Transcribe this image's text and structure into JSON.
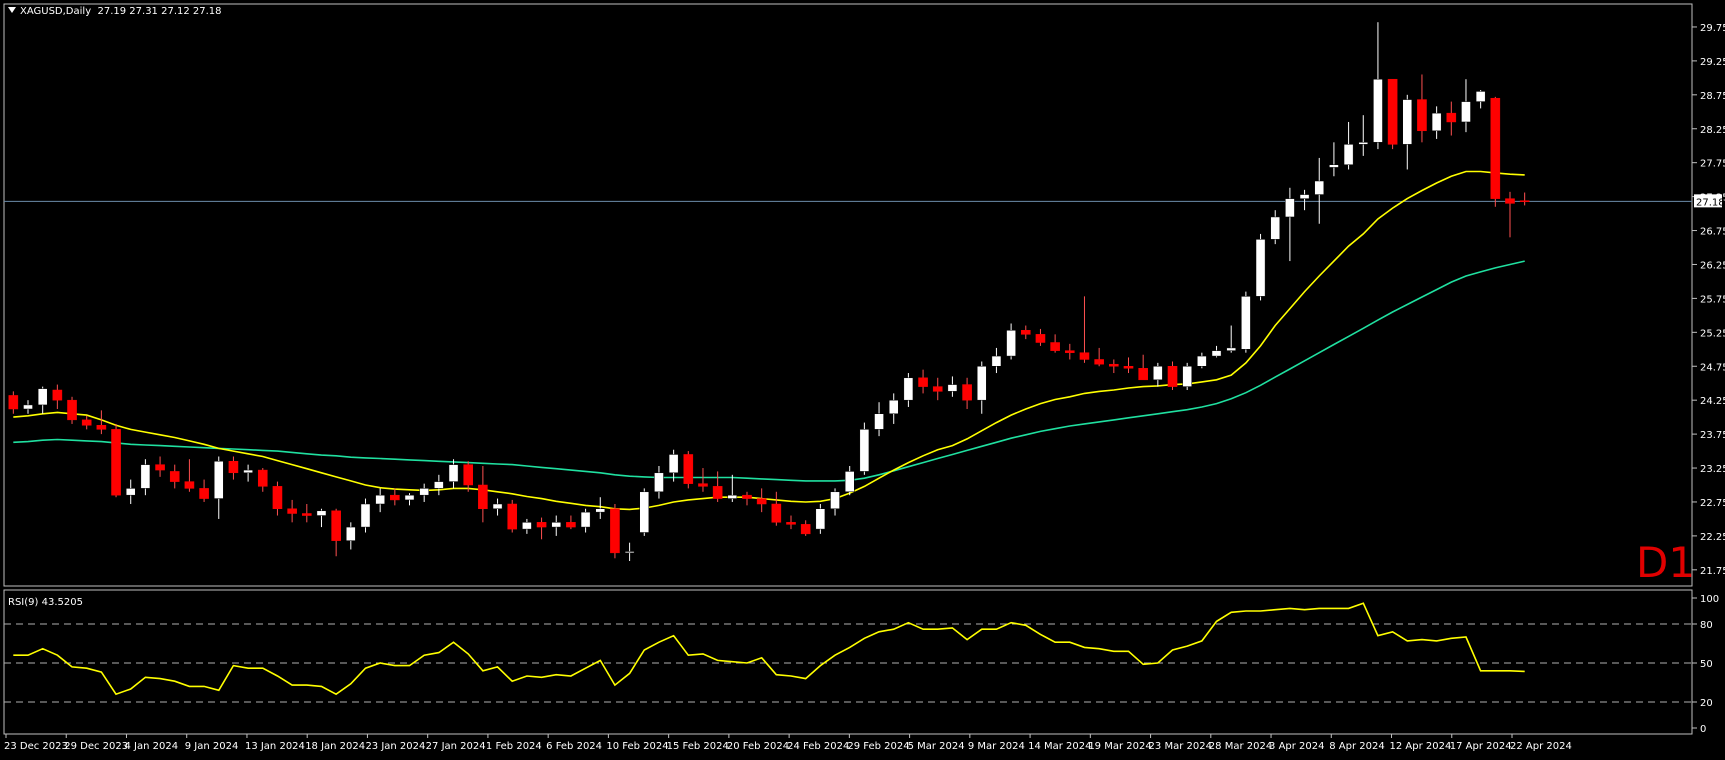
{
  "header": {
    "symbol": "XAGUSD,Daily",
    "ohlc": "27.19 27.31 27.12 27.18"
  },
  "timeframe_label": "D1",
  "last_price_label": "27.18",
  "colors": {
    "bull_candle": "#ffffff",
    "bear_candle": "#ff0000",
    "wick": "#ffffff",
    "ma_fast": "#ffff00",
    "ma_slow": "#20e0a0",
    "rsi_line": "#ffff00",
    "price_line": "#6c8caa",
    "frame": "#c0c0c0",
    "background": "#000000"
  },
  "chart_data": [
    {
      "type": "candlestick",
      "title": "XAGUSD,Daily",
      "ylim": [
        21.6,
        30.0
      ],
      "y_ticks": [
        "29.75",
        "29.25",
        "28.75",
        "28.25",
        "27.75",
        "27.25",
        "26.75",
        "26.25",
        "25.75",
        "25.25",
        "24.75",
        "24.25",
        "23.75",
        "23.25",
        "22.75",
        "22.25",
        "21.75"
      ],
      "last_price": 27.18,
      "series": [
        {
          "name": "",
          "role": "ohlc",
          "values": [
            [
              24.32,
              24.38,
              24.05,
              24.12
            ],
            [
              24.12,
              24.25,
              24.05,
              24.18
            ],
            [
              24.18,
              24.45,
              24.05,
              24.42
            ],
            [
              24.4,
              24.48,
              24.12,
              24.25
            ],
            [
              24.25,
              24.3,
              23.9,
              23.96
            ],
            [
              23.96,
              24.02,
              23.82,
              23.88
            ],
            [
              23.88,
              24.1,
              23.75,
              23.82
            ],
            [
              23.82,
              23.9,
              22.82,
              22.85
            ],
            [
              22.85,
              23.08,
              22.72,
              22.95
            ],
            [
              22.95,
              23.38,
              22.85,
              23.3
            ],
            [
              23.3,
              23.42,
              23.12,
              23.22
            ],
            [
              23.2,
              23.3,
              22.95,
              23.05
            ],
            [
              23.05,
              23.38,
              22.9,
              22.95
            ],
            [
              22.95,
              23.08,
              22.75,
              22.8
            ],
            [
              22.8,
              23.42,
              22.5,
              23.35
            ],
            [
              23.35,
              23.42,
              23.08,
              23.18
            ],
            [
              23.18,
              23.3,
              23.05,
              23.22
            ],
            [
              23.22,
              23.25,
              22.9,
              22.98
            ],
            [
              22.98,
              23.05,
              22.55,
              22.65
            ],
            [
              22.65,
              22.78,
              22.45,
              22.58
            ],
            [
              22.58,
              22.72,
              22.45,
              22.55
            ],
            [
              22.55,
              22.65,
              22.38,
              22.62
            ],
            [
              22.62,
              22.65,
              21.95,
              22.18
            ],
            [
              22.18,
              22.45,
              22.05,
              22.38
            ],
            [
              22.38,
              22.8,
              22.3,
              22.72
            ],
            [
              22.72,
              22.95,
              22.6,
              22.85
            ],
            [
              22.85,
              22.95,
              22.7,
              22.78
            ],
            [
              22.78,
              22.88,
              22.7,
              22.85
            ],
            [
              22.85,
              23.02,
              22.75,
              22.95
            ],
            [
              22.95,
              23.15,
              22.85,
              23.05
            ],
            [
              23.05,
              23.38,
              22.95,
              23.3
            ],
            [
              23.3,
              23.35,
              22.9,
              23.0
            ],
            [
              23.0,
              23.28,
              22.45,
              22.65
            ],
            [
              22.65,
              22.8,
              22.55,
              22.72
            ],
            [
              22.72,
              22.78,
              22.3,
              22.35
            ],
            [
              22.35,
              22.5,
              22.28,
              22.45
            ],
            [
              22.45,
              22.52,
              22.2,
              22.38
            ],
            [
              22.38,
              22.55,
              22.25,
              22.45
            ],
            [
              22.45,
              22.55,
              22.35,
              22.38
            ],
            [
              22.38,
              22.65,
              22.3,
              22.6
            ],
            [
              22.6,
              22.82,
              22.5,
              22.65
            ],
            [
              22.65,
              22.72,
              21.92,
              22.0
            ],
            [
              22.0,
              22.15,
              21.88,
              22.02
            ],
            [
              22.3,
              22.95,
              22.25,
              22.9
            ],
            [
              22.9,
              23.28,
              22.8,
              23.18
            ],
            [
              23.18,
              23.52,
              23.05,
              23.45
            ],
            [
              23.45,
              23.5,
              22.95,
              23.02
            ],
            [
              23.02,
              23.25,
              22.9,
              22.98
            ],
            [
              22.98,
              23.2,
              22.75,
              22.8
            ],
            [
              22.8,
              23.15,
              22.75,
              22.85
            ],
            [
              22.85,
              22.9,
              22.7,
              22.8
            ],
            [
              22.8,
              22.95,
              22.6,
              22.72
            ],
            [
              22.72,
              22.9,
              22.4,
              22.45
            ],
            [
              22.45,
              22.55,
              22.35,
              22.42
            ],
            [
              22.42,
              22.48,
              22.25,
              22.28
            ],
            [
              22.35,
              22.72,
              22.28,
              22.65
            ],
            [
              22.65,
              22.95,
              22.55,
              22.9
            ],
            [
              22.9,
              23.28,
              22.85,
              23.2
            ],
            [
              23.2,
              23.92,
              23.15,
              23.82
            ],
            [
              23.82,
              24.22,
              23.72,
              24.05
            ],
            [
              24.05,
              24.35,
              23.9,
              24.25
            ],
            [
              24.25,
              24.65,
              24.15,
              24.58
            ],
            [
              24.58,
              24.7,
              24.35,
              24.45
            ],
            [
              24.45,
              24.58,
              24.25,
              24.38
            ],
            [
              24.38,
              24.6,
              24.3,
              24.48
            ],
            [
              24.48,
              24.58,
              24.12,
              24.25
            ],
            [
              24.25,
              24.82,
              24.05,
              24.75
            ],
            [
              24.75,
              25.02,
              24.65,
              24.9
            ],
            [
              24.9,
              25.38,
              24.85,
              25.28
            ],
            [
              25.28,
              25.35,
              25.15,
              25.22
            ],
            [
              25.22,
              25.3,
              25.05,
              25.1
            ],
            [
              25.1,
              25.22,
              24.95,
              24.98
            ],
            [
              24.98,
              25.08,
              24.85,
              24.95
            ],
            [
              24.95,
              25.78,
              24.8,
              24.85
            ],
            [
              24.85,
              25.02,
              24.75,
              24.78
            ],
            [
              24.78,
              24.85,
              24.65,
              24.75
            ],
            [
              24.75,
              24.88,
              24.65,
              24.72
            ],
            [
              24.72,
              24.92,
              24.58,
              24.55
            ],
            [
              24.55,
              24.8,
              24.45,
              24.75
            ],
            [
              24.75,
              24.82,
              24.4,
              24.45
            ],
            [
              24.45,
              24.8,
              24.4,
              24.75
            ],
            [
              24.75,
              24.95,
              24.72,
              24.9
            ],
            [
              24.9,
              25.05,
              24.88,
              24.98
            ],
            [
              24.98,
              25.35,
              24.95,
              25.02
            ],
            [
              25.0,
              25.85,
              24.95,
              25.78
            ],
            [
              25.78,
              26.7,
              25.72,
              26.62
            ],
            [
              26.62,
              27.05,
              26.55,
              26.95
            ],
            [
              26.95,
              27.38,
              26.3,
              27.22
            ],
            [
              27.22,
              27.35,
              27.05,
              27.28
            ],
            [
              27.28,
              27.82,
              26.85,
              27.48
            ],
            [
              27.68,
              28.05,
              27.55,
              27.72
            ],
            [
              27.72,
              28.35,
              27.65,
              28.02
            ],
            [
              28.02,
              28.45,
              27.85,
              28.05
            ],
            [
              28.05,
              29.82,
              27.95,
              28.98
            ],
            [
              28.98,
              28.98,
              27.95,
              28.02
            ],
            [
              28.02,
              28.75,
              27.65,
              28.68
            ],
            [
              28.68,
              29.05,
              28.05,
              28.22
            ],
            [
              28.22,
              28.58,
              28.1,
              28.48
            ],
            [
              28.48,
              28.65,
              28.15,
              28.35
            ],
            [
              28.35,
              28.98,
              28.2,
              28.65
            ],
            [
              28.65,
              28.82,
              28.55,
              28.8
            ],
            [
              28.7,
              28.72,
              27.1,
              27.22
            ],
            [
              27.22,
              27.32,
              26.65,
              27.15
            ],
            [
              27.19,
              27.31,
              27.12,
              27.18
            ]
          ]
        },
        {
          "name": "",
          "role": "ma_fast",
          "values": [
            24.0,
            24.02,
            24.05,
            24.07,
            24.05,
            24.03,
            23.96,
            23.88,
            23.82,
            23.78,
            23.74,
            23.7,
            23.65,
            23.6,
            23.54,
            23.5,
            23.46,
            23.42,
            23.36,
            23.3,
            23.24,
            23.18,
            23.12,
            23.06,
            23.0,
            22.96,
            22.94,
            22.93,
            22.92,
            22.93,
            22.95,
            22.95,
            22.93,
            22.9,
            22.87,
            22.83,
            22.8,
            22.76,
            22.73,
            22.7,
            22.68,
            22.65,
            22.64,
            22.66,
            22.7,
            22.75,
            22.78,
            22.8,
            22.82,
            22.82,
            22.82,
            22.8,
            22.78,
            22.76,
            22.75,
            22.76,
            22.8,
            22.88,
            22.98,
            23.1,
            23.22,
            23.33,
            23.43,
            23.52,
            23.58,
            23.68,
            23.8,
            23.92,
            24.03,
            24.12,
            24.2,
            24.26,
            24.3,
            24.35,
            24.38,
            24.4,
            24.43,
            24.45,
            24.46,
            24.48,
            24.49,
            24.52,
            24.55,
            24.62,
            24.8,
            25.05,
            25.35,
            25.6,
            25.85,
            26.08,
            26.3,
            26.52,
            26.7,
            26.92,
            27.08,
            27.22,
            27.34,
            27.45,
            27.55,
            27.62,
            27.62,
            27.6,
            27.58,
            27.57
          ]
        },
        {
          "name": "",
          "role": "ma_slow",
          "values": [
            23.63,
            23.64,
            23.66,
            23.67,
            23.66,
            23.65,
            23.64,
            23.62,
            23.6,
            23.59,
            23.58,
            23.57,
            23.56,
            23.55,
            23.54,
            23.53,
            23.52,
            23.51,
            23.5,
            23.48,
            23.46,
            23.44,
            23.43,
            23.41,
            23.4,
            23.39,
            23.38,
            23.37,
            23.36,
            23.35,
            23.34,
            23.33,
            23.32,
            23.31,
            23.3,
            23.28,
            23.26,
            23.24,
            23.22,
            23.2,
            23.18,
            23.15,
            23.13,
            23.12,
            23.11,
            23.11,
            23.11,
            23.11,
            23.11,
            23.11,
            23.1,
            23.09,
            23.08,
            23.07,
            23.06,
            23.06,
            23.06,
            23.07,
            23.1,
            23.15,
            23.21,
            23.27,
            23.33,
            23.39,
            23.45,
            23.51,
            23.57,
            23.63,
            23.69,
            23.74,
            23.79,
            23.83,
            23.87,
            23.9,
            23.93,
            23.96,
            23.99,
            24.02,
            24.05,
            24.08,
            24.11,
            24.15,
            24.2,
            24.27,
            24.36,
            24.47,
            24.59,
            24.71,
            24.83,
            24.95,
            25.07,
            25.19,
            25.31,
            25.43,
            25.55,
            25.66,
            25.77,
            25.88,
            25.99,
            26.08,
            26.14,
            26.2,
            26.25,
            26.3
          ]
        }
      ]
    },
    {
      "type": "line",
      "title": "RSI(9) 43.5205",
      "ylim": [
        0,
        100
      ],
      "y_ticks": [
        "100",
        "80",
        "50",
        "20",
        "0"
      ],
      "levels": [
        80,
        50,
        20
      ],
      "series": [
        {
          "name": "RSI(9)",
          "values": [
            56,
            56,
            61,
            56,
            47,
            46,
            43,
            26,
            30,
            39,
            38,
            36,
            32,
            32,
            29,
            48,
            46,
            46,
            40,
            33,
            33,
            32,
            26,
            34,
            46,
            50,
            48,
            48,
            56,
            58,
            66,
            57,
            44,
            47,
            36,
            40,
            39,
            41,
            40,
            46,
            52,
            33,
            42,
            60,
            66,
            71,
            56,
            57,
            52,
            51,
            50,
            54,
            41,
            40,
            38,
            48,
            56,
            62,
            69,
            74,
            76,
            81,
            76,
            76,
            77,
            68,
            76,
            76,
            81,
            79,
            72,
            66,
            66,
            62,
            61,
            59,
            59,
            49,
            50,
            60,
            63,
            67,
            82,
            89,
            90,
            90,
            91,
            92,
            91,
            92,
            92,
            92,
            96,
            71,
            74,
            67,
            68,
            67,
            69,
            70,
            44,
            44,
            44,
            43.5205
          ]
        }
      ]
    }
  ],
  "x_axis": {
    "labels": [
      "23 Dec 2023",
      "29 Dec 2023",
      "4 Jan 2024",
      "9 Jan 2024",
      "13 Jan 2024",
      "18 Jan 2024",
      "23 Jan 2024",
      "27 Jan 2024",
      "1 Feb 2024",
      "6 Feb 2024",
      "10 Feb 2024",
      "15 Feb 2024",
      "20 Feb 2024",
      "24 Feb 2024",
      "29 Feb 2024",
      "5 Mar 2024",
      "9 Mar 2024",
      "14 Mar 2024",
      "19 Mar 2024",
      "23 Mar 2024",
      "28 Mar 2024",
      "3 Apr 2024",
      "8 Apr 2024",
      "12 Apr 2024",
      "17 Apr 2024",
      "22 Apr 2024"
    ]
  }
}
